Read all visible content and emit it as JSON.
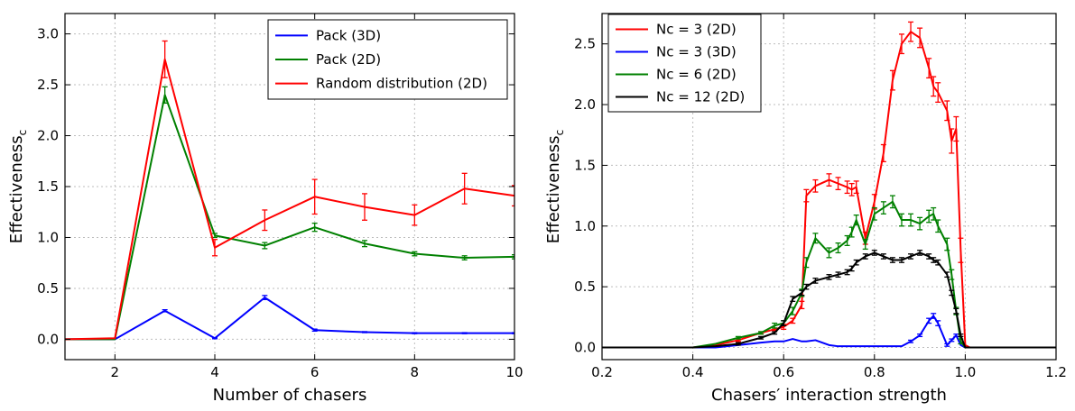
{
  "chart_data": [
    {
      "type": "line",
      "xlabel": "Number of chasers",
      "ylabel": "Effectiveness",
      "ylabel_subscript": "c",
      "xlim": [
        1,
        10
      ],
      "ylim": [
        -0.2,
        3.2
      ],
      "xticks": [
        "2",
        "4",
        "6",
        "8",
        "10"
      ],
      "xtick_values": [
        2,
        4,
        6,
        8,
        10
      ],
      "yticks": [
        "0.0",
        "0.5",
        "1.0",
        "1.5",
        "2.0",
        "2.5",
        "3.0"
      ],
      "ytick_values": [
        0,
        0.5,
        1.0,
        1.5,
        2.0,
        2.5,
        3.0
      ],
      "grid": true,
      "legend_position": "top-right",
      "x": [
        1,
        2,
        3,
        4,
        5,
        6,
        7,
        8,
        9,
        10
      ],
      "series": [
        {
          "name": "Pack (3D)",
          "color": "#0000ff",
          "values": [
            0.0,
            0.0,
            0.28,
            0.01,
            0.41,
            0.09,
            0.07,
            0.06,
            0.06,
            0.06
          ],
          "errors": [
            0,
            0,
            0.01,
            0.005,
            0.02,
            0.01,
            0.005,
            0.005,
            0.005,
            0.005
          ]
        },
        {
          "name": "Pack (2D)",
          "color": "#008000",
          "values": [
            0.0,
            0.0,
            2.4,
            1.02,
            0.92,
            1.1,
            0.94,
            0.84,
            0.8,
            0.81
          ],
          "errors": [
            0,
            0,
            0.08,
            0.02,
            0.03,
            0.04,
            0.03,
            0.02,
            0.02,
            0.02
          ]
        },
        {
          "name": "Random distribution (2D)",
          "color": "#ff0000",
          "values": [
            0.0,
            0.01,
            2.75,
            0.9,
            1.17,
            1.4,
            1.3,
            1.22,
            1.48,
            1.41
          ],
          "errors": [
            0,
            0,
            0.18,
            0.08,
            0.1,
            0.17,
            0.13,
            0.1,
            0.15,
            0.1
          ]
        }
      ]
    },
    {
      "type": "line",
      "xlabel": "Chasers′ interaction strength",
      "ylabel": "Effectiveness",
      "ylabel_subscript": "c",
      "xlim": [
        0.2,
        1.2
      ],
      "ylim": [
        -0.1,
        2.75
      ],
      "xticks": [
        "0.2",
        "0.4",
        "0.6",
        "0.8",
        "1.0",
        "1.2"
      ],
      "xtick_values": [
        0.2,
        0.4,
        0.6,
        0.8,
        1.0,
        1.2
      ],
      "yticks": [
        "0.0",
        "0.5",
        "1.0",
        "1.5",
        "2.0",
        "2.5"
      ],
      "ytick_values": [
        0,
        0.5,
        1.0,
        1.5,
        2.0,
        2.5
      ],
      "grid": true,
      "legend_position": "top-left",
      "x": [
        0.2,
        0.4,
        0.45,
        0.5,
        0.55,
        0.58,
        0.6,
        0.62,
        0.64,
        0.65,
        0.67,
        0.7,
        0.72,
        0.74,
        0.75,
        0.76,
        0.78,
        0.8,
        0.82,
        0.84,
        0.86,
        0.88,
        0.9,
        0.92,
        0.93,
        0.94,
        0.96,
        0.97,
        0.98,
        0.99,
        1.0,
        1.01,
        1.2
      ],
      "series": [
        {
          "name": "Nc = 3 (2D)",
          "color": "#ff0000",
          "values": [
            0,
            0,
            0.02,
            0.06,
            0.12,
            0.15,
            0.17,
            0.22,
            0.35,
            1.25,
            1.33,
            1.38,
            1.35,
            1.32,
            1.3,
            1.32,
            0.9,
            1.2,
            1.6,
            2.2,
            2.5,
            2.6,
            2.55,
            2.3,
            2.15,
            2.1,
            1.95,
            1.7,
            1.8,
            0.8,
            0.02,
            0,
            0
          ],
          "errors": [
            0,
            0,
            0,
            0.01,
            0.01,
            0.01,
            0.02,
            0.02,
            0.03,
            0.05,
            0.05,
            0.05,
            0.05,
            0.05,
            0.05,
            0.05,
            0.05,
            0.06,
            0.07,
            0.08,
            0.08,
            0.08,
            0.08,
            0.08,
            0.08,
            0.08,
            0.08,
            0.1,
            0.1,
            0.1,
            0,
            0,
            0
          ]
        },
        {
          "name": "Nc = 3 (3D)",
          "color": "#0000ff",
          "values": [
            0,
            0,
            0,
            0.02,
            0.04,
            0.05,
            0.05,
            0.07,
            0.05,
            0.05,
            0.06,
            0.02,
            0.01,
            0.01,
            0.01,
            0.01,
            0.01,
            0.01,
            0.01,
            0.01,
            0.01,
            0.05,
            0.1,
            0.22,
            0.26,
            0.2,
            0.02,
            0.06,
            0.1,
            0.02,
            0,
            0,
            0
          ],
          "errors": [
            0,
            0,
            0,
            0,
            0,
            0,
            0,
            0,
            0,
            0,
            0,
            0,
            0,
            0,
            0,
            0,
            0,
            0,
            0,
            0,
            0,
            0.01,
            0.01,
            0.02,
            0.02,
            0.02,
            0.01,
            0.01,
            0.01,
            0,
            0,
            0,
            0
          ]
        },
        {
          "name": "Nc = 6 (2D)",
          "color": "#008000",
          "values": [
            0,
            0,
            0.03,
            0.08,
            0.12,
            0.18,
            0.2,
            0.3,
            0.45,
            0.7,
            0.9,
            0.78,
            0.82,
            0.88,
            0.95,
            1.05,
            0.85,
            1.1,
            1.15,
            1.2,
            1.05,
            1.05,
            1.02,
            1.08,
            1.1,
            1.0,
            0.85,
            0.6,
            0.3,
            0.05,
            0,
            0,
            0
          ],
          "errors": [
            0,
            0,
            0,
            0.01,
            0.01,
            0.02,
            0.02,
            0.03,
            0.03,
            0.04,
            0.04,
            0.04,
            0.04,
            0.04,
            0.04,
            0.04,
            0.04,
            0.05,
            0.05,
            0.05,
            0.05,
            0.05,
            0.05,
            0.05,
            0.05,
            0.05,
            0.05,
            0.04,
            0.03,
            0.02,
            0,
            0,
            0
          ]
        },
        {
          "name": "Nc = 12 (2D)",
          "color": "#000000",
          "values": [
            0,
            0,
            0.01,
            0.03,
            0.08,
            0.12,
            0.2,
            0.4,
            0.45,
            0.5,
            0.55,
            0.58,
            0.6,
            0.62,
            0.65,
            0.7,
            0.75,
            0.78,
            0.75,
            0.72,
            0.72,
            0.75,
            0.78,
            0.75,
            0.72,
            0.7,
            0.6,
            0.45,
            0.3,
            0.1,
            0,
            0,
            0
          ],
          "errors": [
            0,
            0,
            0,
            0.01,
            0.01,
            0.01,
            0.02,
            0.02,
            0.02,
            0.02,
            0.02,
            0.02,
            0.02,
            0.02,
            0.02,
            0.02,
            0.02,
            0.02,
            0.02,
            0.02,
            0.02,
            0.02,
            0.02,
            0.02,
            0.02,
            0.02,
            0.02,
            0.02,
            0.02,
            0.01,
            0,
            0,
            0
          ]
        }
      ]
    }
  ]
}
